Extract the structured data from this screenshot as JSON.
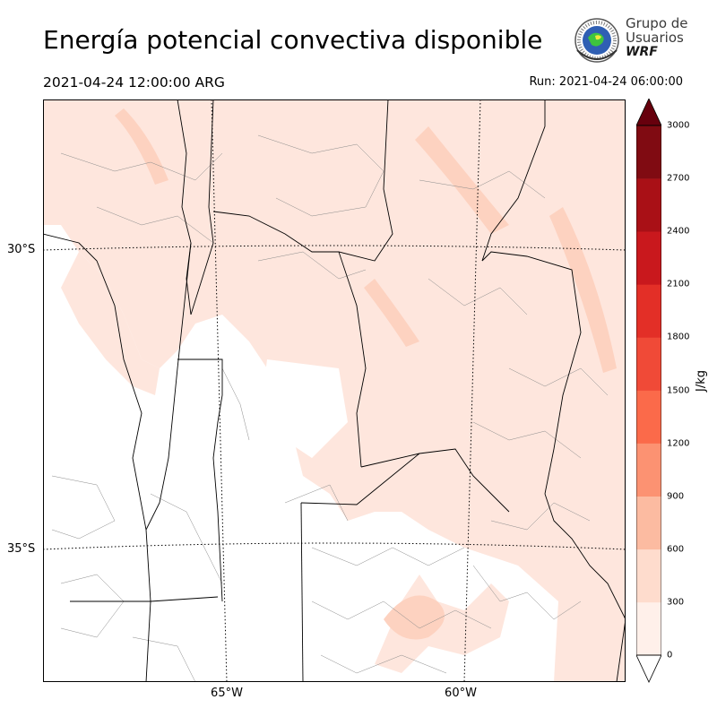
{
  "header": {
    "title": "Energía potencial convectiva disponible",
    "valid_time": "2021-04-24 12:00:00 ARG",
    "run_time": "Run: 2021-04-24 06:00:00"
  },
  "logo": {
    "line1": "Grupo de",
    "line2": "Usuarios",
    "line3": "WRF",
    "icon": "globe-seal-icon"
  },
  "map": {
    "lat_labels": [
      "30°S",
      "35°S"
    ],
    "lon_labels": [
      "65°W",
      "60°W"
    ],
    "fill_color": "#fee6dd",
    "fill_color_2": "#fdd2c0",
    "boundary_color": "#000000",
    "district_color": "#8a8a8a"
  },
  "colorbar": {
    "unit": "J/kg",
    "ticks": [
      "0",
      "300",
      "600",
      "900",
      "1200",
      "1500",
      "1800",
      "2100",
      "2400",
      "2700",
      "3000"
    ],
    "colors": [
      "#fff0ea",
      "#fedccd",
      "#fcbba1",
      "#fc9272",
      "#fb6a4a",
      "#f04a37",
      "#e32f27",
      "#c9181d",
      "#a91016",
      "#800b12"
    ],
    "over_color": "#67000d",
    "under_color": "#ffffff"
  }
}
